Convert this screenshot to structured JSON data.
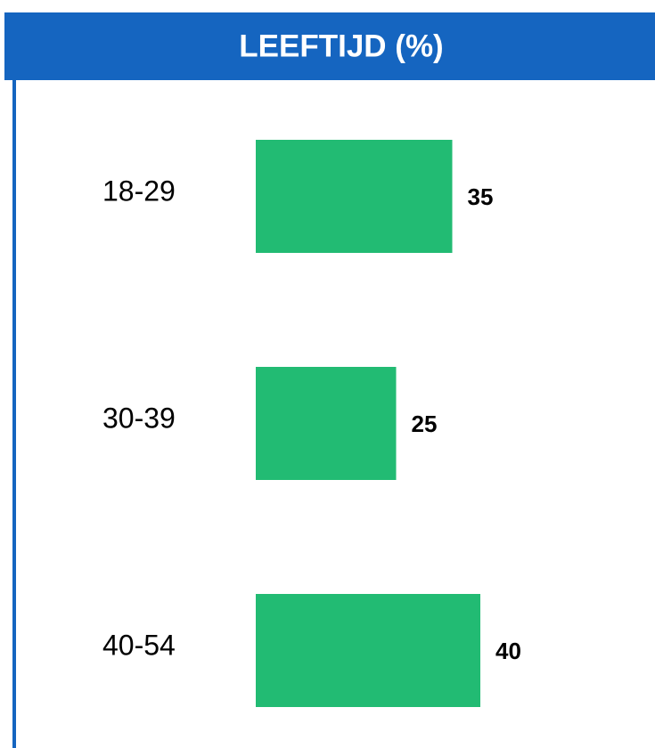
{
  "chart_data": {
    "type": "bar",
    "orientation": "horizontal",
    "title": "LEEFTIJD (%)",
    "categories": [
      "18-29",
      "30-39",
      "40-54"
    ],
    "values": [
      35,
      25,
      40
    ],
    "color": "#22bb73"
  }
}
